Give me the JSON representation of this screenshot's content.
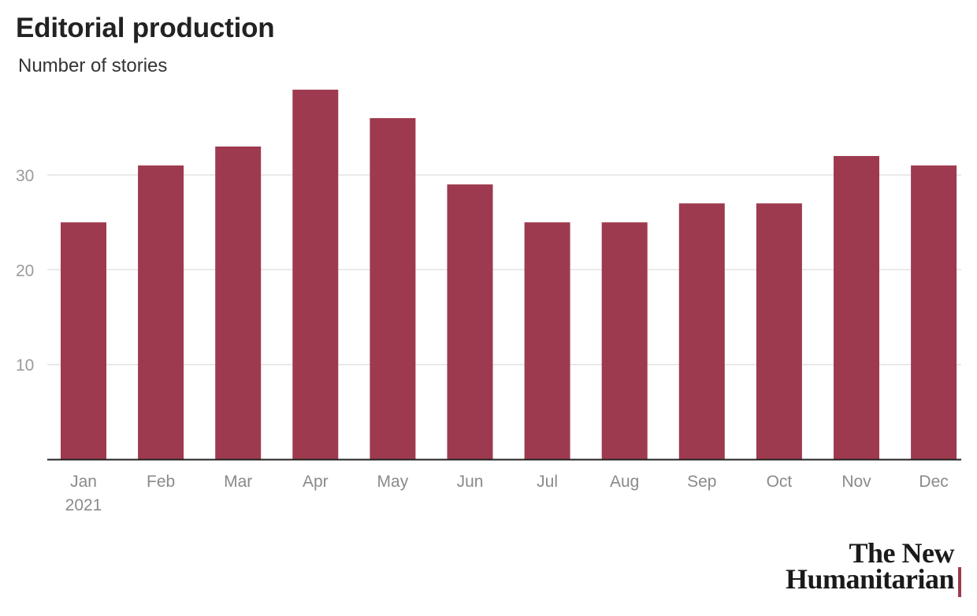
{
  "colors": {
    "bar": "#9e3a4f",
    "grid": "#e2e2e2",
    "axis": "#222222"
  },
  "logo": {
    "line1": "The New",
    "line2": "Humanitarian"
  },
  "chart_data": {
    "type": "bar",
    "title": "Editorial production",
    "subtitle": "Number of stories",
    "categories": [
      "Jan",
      "Feb",
      "Mar",
      "Apr",
      "May",
      "Jun",
      "Jul",
      "Aug",
      "Sep",
      "Oct",
      "Nov",
      "Dec"
    ],
    "category_sublabels": [
      "2021",
      "",
      "",
      "",
      "",
      "",
      "",
      "",
      "",
      "",
      "",
      ""
    ],
    "values": [
      25,
      31,
      33,
      39,
      36,
      29,
      25,
      25,
      27,
      27,
      32,
      31
    ],
    "yticks": [
      10,
      20,
      30
    ],
    "ylim": [
      0,
      39
    ],
    "grid": true,
    "xlabel": "",
    "ylabel": ""
  }
}
